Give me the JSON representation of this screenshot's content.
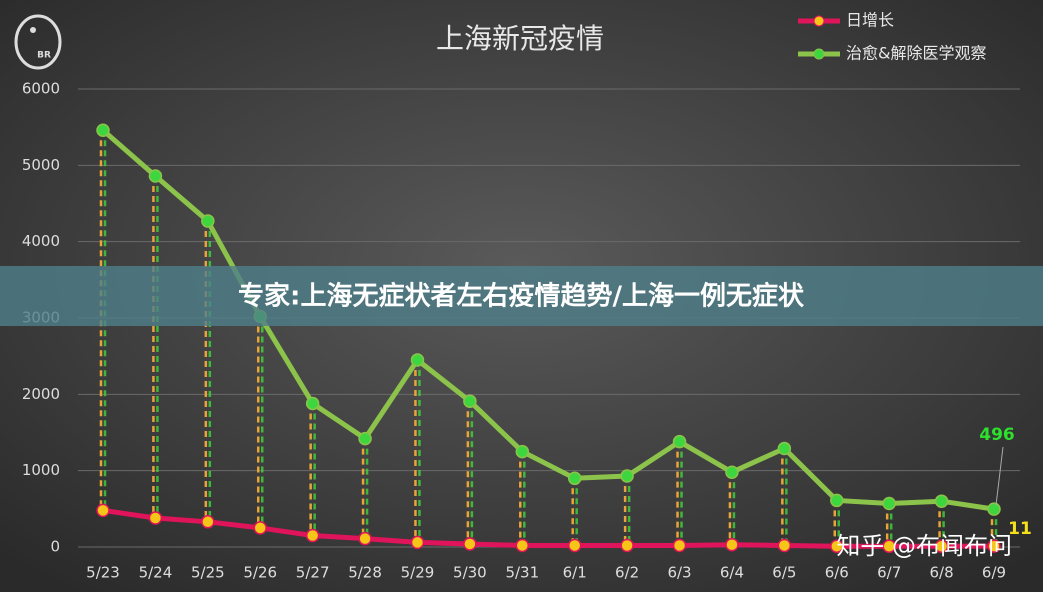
{
  "chart_data": {
    "type": "line",
    "title": "上海新冠疫情",
    "categories": [
      "5/23",
      "5/24",
      "5/25",
      "5/26",
      "5/27",
      "5/28",
      "5/29",
      "5/30",
      "5/31",
      "6/1",
      "6/2",
      "6/3",
      "6/4",
      "6/5",
      "6/6",
      "6/7",
      "6/8",
      "6/9"
    ],
    "series": [
      {
        "name": "日增长",
        "color": "#e0145a",
        "marker_color": "#f5c518",
        "values": [
          480,
          380,
          330,
          250,
          150,
          110,
          60,
          40,
          20,
          20,
          20,
          20,
          30,
          20,
          10,
          10,
          10,
          11
        ]
      },
      {
        "name": "治愈&解除医学观察",
        "color": "#8cc34a",
        "marker_color": "#3ed63e",
        "values": [
          5460,
          4860,
          4270,
          3020,
          1880,
          1420,
          2450,
          1910,
          1250,
          900,
          930,
          1380,
          980,
          1290,
          610,
          570,
          600,
          496
        ]
      }
    ],
    "ylim": [
      0,
      6000
    ],
    "yticks": [
      0,
      1000,
      2000,
      3000,
      4000,
      5000,
      6000
    ],
    "grid": true
  },
  "banner": "专家:上海无症状者左右疫情趋势/上海一例无症状",
  "watermark": "知乎 @布闻布问",
  "logo": "BR"
}
